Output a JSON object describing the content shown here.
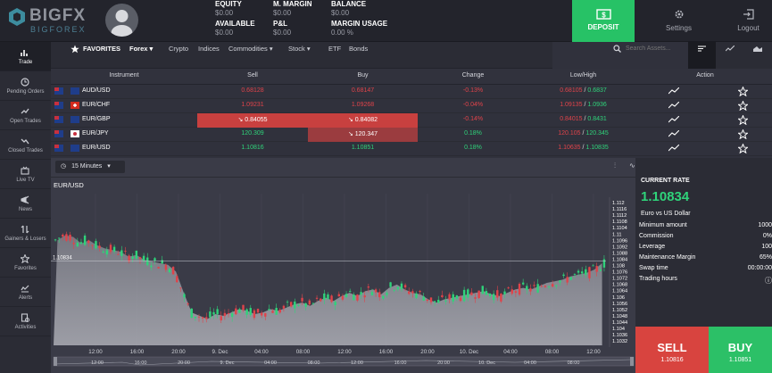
{
  "brand": {
    "name": "BIGFX",
    "sub": "BIGFOREX"
  },
  "account": {
    "equity_label": "EQUITY",
    "equity_value": "$0.00",
    "margin_label": "M. MARGIN",
    "margin_value": "$0.00",
    "balance_label": "BALANCE",
    "balance_value": "$0.00",
    "available_label": "AVAILABLE",
    "available_value": "$0.00",
    "pl_label": "P&L",
    "pl_value": "$0.00",
    "usage_label": "MARGIN USAGE",
    "usage_value": "0.00 %"
  },
  "header_buttons": {
    "deposit": "DEPOSIT",
    "settings": "Settings",
    "logout": "Logout"
  },
  "sidebar": [
    {
      "label": "Trade",
      "icon": "trade-icon"
    },
    {
      "label": "Pending Orders",
      "icon": "pending-orders-icon"
    },
    {
      "label": "Open Trades",
      "icon": "open-trades-icon"
    },
    {
      "label": "Closed Trades",
      "icon": "closed-trades-icon"
    },
    {
      "label": "Live TV",
      "icon": "live-tv-icon"
    },
    {
      "label": "News",
      "icon": "news-icon"
    },
    {
      "label": "Gainers & Losers",
      "icon": "gainers-losers-icon"
    },
    {
      "label": "Favorites",
      "icon": "favorites-icon"
    },
    {
      "label": "Alerts",
      "icon": "alerts-icon"
    },
    {
      "label": "Activities",
      "icon": "activities-icon"
    }
  ],
  "tabs": [
    "FAVORITES",
    "Forex",
    "Crypto",
    "Indices",
    "Commodities",
    "Stock",
    "ETF",
    "Bonds"
  ],
  "search": {
    "placeholder": "Search Assets..."
  },
  "table": {
    "headers": [
      "Instrument",
      "Sell",
      "Buy",
      "Change",
      "Low/High",
      "Action"
    ],
    "rows": [
      {
        "instrument": "AUD/USD",
        "sell": "0.68128",
        "buy": "0.68147",
        "change": "-0.13%",
        "low": "0.68105",
        "high": "0.6837"
      },
      {
        "instrument": "EUR/CHF",
        "sell": "1.09231",
        "buy": "1.09268",
        "change": "-0.04%",
        "low": "1.09135",
        "high": "1.0936"
      },
      {
        "instrument": "EUR/GBP",
        "sell": "↘ 0.84055",
        "buy": "↘ 0.84082",
        "change": "-0.14%",
        "low": "0.84015",
        "high": "0.8431"
      },
      {
        "instrument": "EUR/JPY",
        "sell": "120.309",
        "buy": "↘ 120.347",
        "change": "0.18%",
        "low": "120.105",
        "high": "120.345"
      },
      {
        "instrument": "EUR/USD",
        "sell": "1.10816",
        "buy": "1.10851",
        "change": "0.18%",
        "low": "1.10635",
        "high": "1.10835"
      }
    ]
  },
  "chart": {
    "timeframe": "15 Minutes",
    "symbol": "EUR/USD",
    "marker_price": "1.10834",
    "y_ticks": [
      "1.112",
      "1.1116",
      "1.1112",
      "1.1108",
      "1.1104",
      "1.11",
      "1.1096",
      "1.1092",
      "1.1088",
      "1.1084",
      "1.108",
      "1.1076",
      "1.1072",
      "1.1068",
      "1.1064",
      "1.106",
      "1.1056",
      "1.1052",
      "1.1048",
      "1.1044",
      "1.104",
      "1.1036",
      "1.1032"
    ],
    "x_ticks": [
      "12:00",
      "16:00",
      "20:00",
      "9. Dec",
      "04:00",
      "08:00",
      "12:00",
      "16:00",
      "20:00",
      "10. Dec",
      "04:00",
      "08:00",
      "12:00"
    ],
    "nav_ticks": [
      "12:00",
      "16:00",
      "20:00",
      "9. Dec",
      "04:00",
      "08:00",
      "12:00",
      "16:00",
      "20:00",
      "10. Dec",
      "04:00",
      "08:00"
    ]
  },
  "chart_data": {
    "type": "candlestick",
    "title": "EUR/USD",
    "y_range": [
      1.1032,
      1.112
    ],
    "trend": [
      1.1096,
      1.1099,
      1.1098,
      1.1094,
      1.1096,
      1.1093,
      1.1091,
      1.109,
      1.1089,
      1.1086,
      1.1087,
      1.1084,
      1.1083,
      1.1082,
      1.1081,
      1.1077,
      1.1064,
      1.1052,
      1.105,
      1.1048,
      1.1051,
      1.105,
      1.1052,
      1.1054,
      1.1053,
      1.1051,
      1.1052,
      1.1054,
      1.1053,
      1.1055,
      1.1057,
      1.1058,
      1.1056,
      1.1059,
      1.1061,
      1.1059,
      1.1062,
      1.1064,
      1.1062,
      1.1065,
      1.1066,
      1.1063,
      1.1067,
      1.1069,
      1.1066,
      1.1064,
      1.1063,
      1.106,
      1.1058,
      1.106,
      1.1061,
      1.1062,
      1.1063,
      1.1064,
      1.1065,
      1.1063,
      1.1062,
      1.1064,
      1.1066,
      1.1067,
      1.1066,
      1.1068,
      1.107,
      1.1071,
      1.1072,
      1.1074,
      1.1075,
      1.1076,
      1.1078,
      1.1082
    ]
  },
  "rate_panel": {
    "title": "CURRENT RATE",
    "rate": "1.10834",
    "desc": "Euro vs US Dollar",
    "rows": [
      {
        "k": "Minimum amount",
        "v": "1000"
      },
      {
        "k": "Commission",
        "v": "0%"
      },
      {
        "k": "Leverage",
        "v": "100"
      },
      {
        "k": "Maintenance Margin",
        "v": "65%"
      },
      {
        "k": "Swap time",
        "v": "00:00:00"
      },
      {
        "k": "Trading hours",
        "v": ""
      }
    ]
  },
  "trade_buttons": {
    "sell_label": "SELL",
    "sell_price": "1.10816",
    "buy_label": "BUY",
    "buy_price": "1.10851"
  },
  "colors": {
    "up": "#2fd37a",
    "down": "#e0434a",
    "deposit": "#27c266",
    "sell": "#d8443f"
  }
}
